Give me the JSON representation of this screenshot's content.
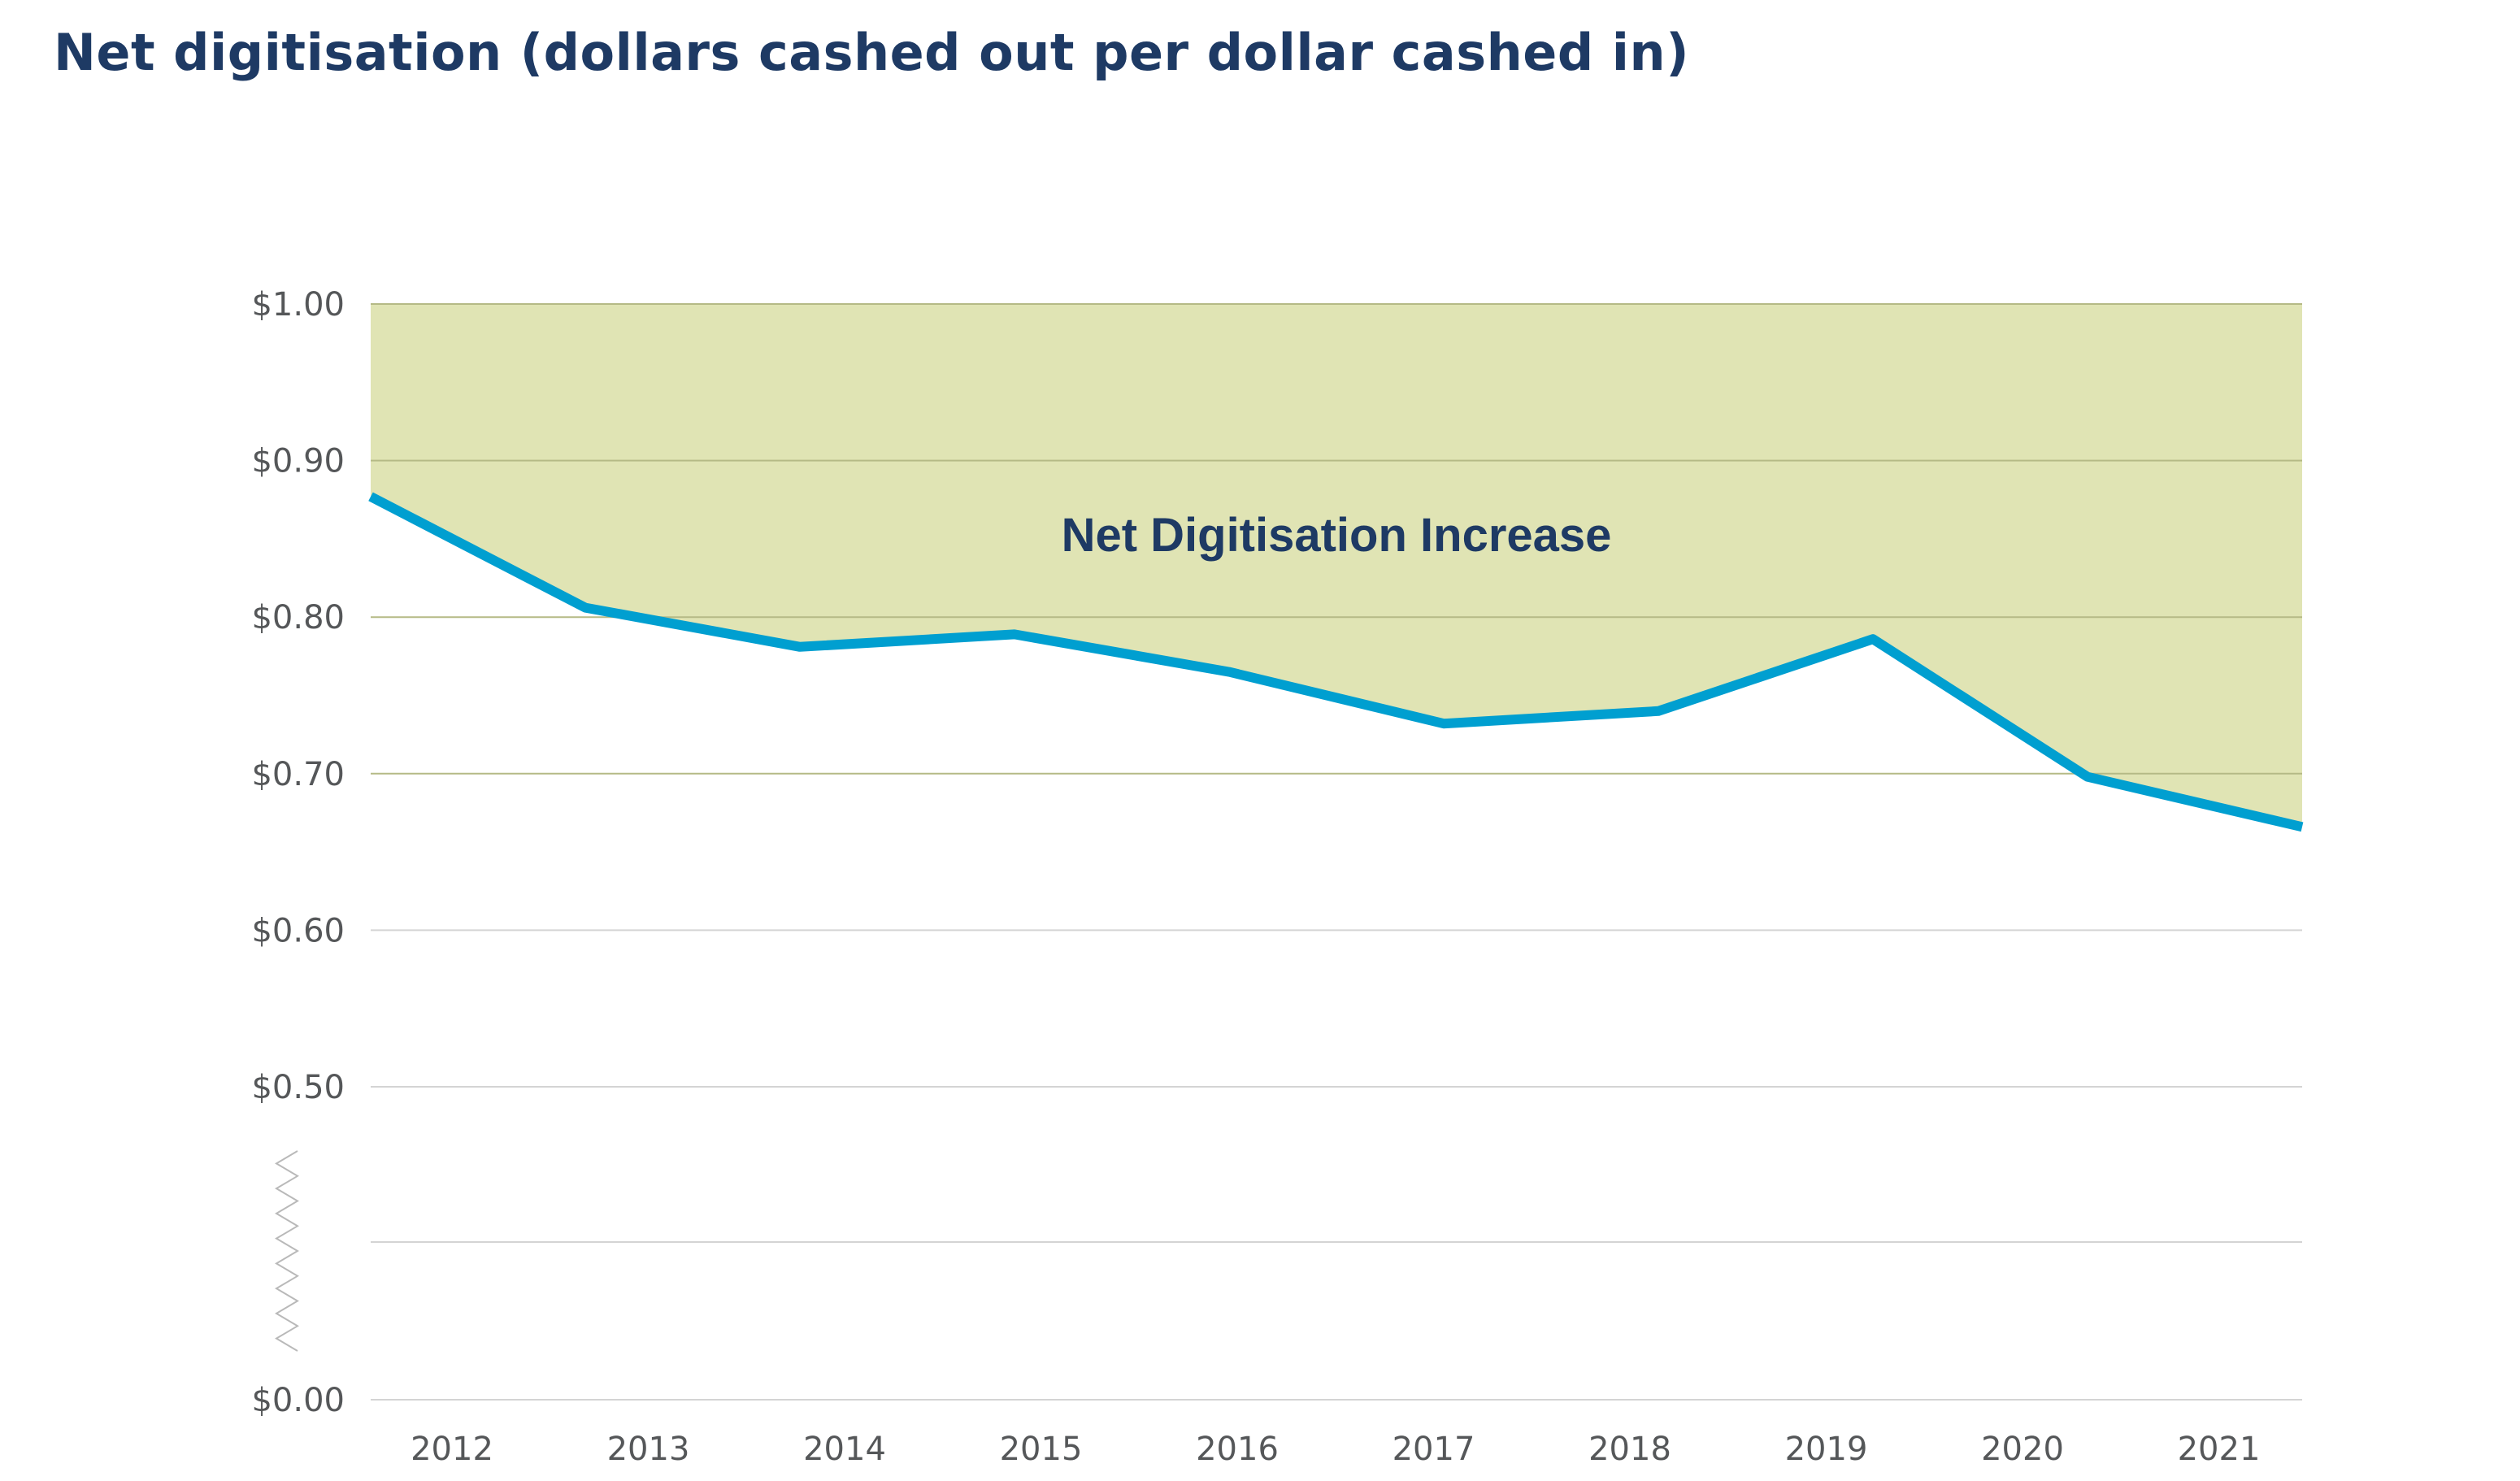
{
  "chart_data": {
    "type": "line",
    "title": "Net digitisation (dollars cashed out per dollar cashed in)",
    "x": [
      "2012",
      "2013",
      "2014",
      "2015",
      "2016",
      "2017",
      "2018",
      "2019",
      "2020",
      "2021"
    ],
    "series": [
      {
        "values": [
          0.877,
          0.806,
          0.781,
          0.789,
          0.765,
          0.732,
          0.74,
          0.786,
          0.698,
          0.666
        ]
      }
    ],
    "reference_value": 1.0,
    "shaded_area": "between line and $1.00",
    "annotation": "Net Digitisation Increase",
    "ylim": [
      0,
      1.0
    ],
    "axis_break": "between $0.00 and $0.50",
    "y_ticks": [
      {
        "value": 1.0,
        "label": "$1.00"
      },
      {
        "value": 0.9,
        "label": "$0.90"
      },
      {
        "value": 0.8,
        "label": "$0.80"
      },
      {
        "value": 0.7,
        "label": "$0.70"
      },
      {
        "value": 0.6,
        "label": "$0.60"
      },
      {
        "value": 0.5,
        "label": "$0.50"
      },
      {
        "value": 0.0,
        "label": "$0.00"
      }
    ],
    "grid": true,
    "colors": {
      "line": "#009fd0",
      "fill": "#e0e4b4",
      "title": "#1e3a64",
      "annotation": "#1e3a64",
      "grid": "#d4d4d4",
      "grid_in_fill": "#b5ba86"
    }
  }
}
